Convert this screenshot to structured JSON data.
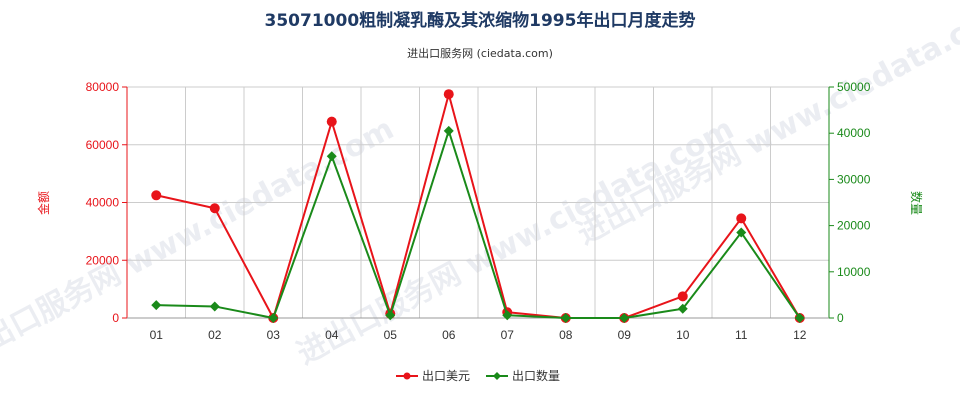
{
  "title": "35071000粗制凝乳酶及其浓缩物1995年出口月度走势",
  "subtitle": "进出口服务网 (ciedata.com)",
  "watermark": "进出口服务网 www.ciedata.com",
  "colors": {
    "left_axis": "#e8141a",
    "right_axis": "#1a8a1a",
    "series_amount": "#e8141a",
    "series_quantity": "#1a8a1a",
    "grid": "#cccccc"
  },
  "chart_data": {
    "type": "line",
    "title": "35071000粗制凝乳酶及其浓缩物1995年出口月度走势",
    "subtitle": "进出口服务网 (ciedata.com)",
    "categories": [
      "01",
      "02",
      "03",
      "04",
      "05",
      "06",
      "07",
      "08",
      "09",
      "10",
      "11",
      "12"
    ],
    "y_left": {
      "label": "金额",
      "min": 0,
      "max": 80000,
      "ticks": [
        0,
        20000,
        40000,
        60000,
        80000
      ]
    },
    "y_right": {
      "label": "数量",
      "min": 0,
      "max": 50000,
      "ticks": [
        0,
        10000,
        20000,
        30000,
        40000,
        50000
      ]
    },
    "series": [
      {
        "name": "出口美元",
        "axis": "left",
        "color": "#e8141a",
        "marker": "circle",
        "values": [
          42500,
          38000,
          0,
          68000,
          1500,
          77500,
          2000,
          0,
          0,
          7500,
          34500,
          0
        ]
      },
      {
        "name": "出口数量",
        "axis": "right",
        "color": "#1a8a1a",
        "marker": "diamond",
        "values": [
          2800,
          2500,
          0,
          35000,
          600,
          40500,
          600,
          0,
          0,
          2000,
          18500,
          0
        ]
      }
    ],
    "grid": true,
    "legend_position": "bottom-center"
  }
}
